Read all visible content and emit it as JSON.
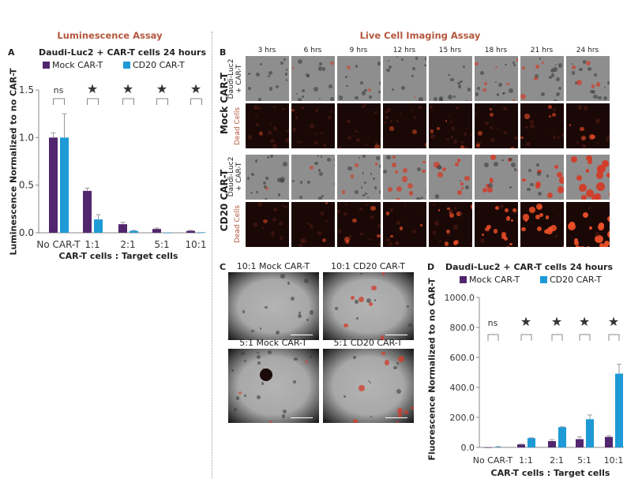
{
  "sections": {
    "left_title": "Luminescence Assay",
    "right_title": "Live Cell Imaging Assay"
  },
  "panels": {
    "a": "A",
    "b": "B",
    "c": "C",
    "d": "D"
  },
  "legend": {
    "mock": "Mock CAR-T",
    "cd20": "CD20 CAR-T"
  },
  "colors": {
    "mock": "#52266e",
    "cd20": "#1e9ad6",
    "accent": "#b5573d"
  },
  "panel_b": {
    "timepoints": [
      "3 hrs",
      "6 hrs",
      "9 hrs",
      "12 hrs",
      "15 hrs",
      "18 hrs",
      "21 hrs",
      "24 hrs"
    ],
    "groups": [
      {
        "label": "Mock CAR-T",
        "brightfield_label_1": "Daudi-Luc2",
        "brightfield_label_2": "+ CAR-T",
        "dead_label": "Dead Cells"
      },
      {
        "label": "CD20 CAR-T",
        "brightfield_label_1": "Daudi-Luc2",
        "brightfield_label_2": "+ CAR-T",
        "dead_label": "Dead Cells"
      }
    ]
  },
  "panel_c": {
    "images": [
      "10:1 Mock CAR-T",
      "10:1 CD20 CAR-T",
      "5:1 Mock CAR-T",
      "5:1 CD20 CAR-T"
    ]
  },
  "chart_data": [
    {
      "type": "bar",
      "title": "Daudi-Luc2 + CAR-T cells 24 hours",
      "xlabel": "CAR-T cells : Target cells",
      "ylabel": "Luminescence Normalized to no CAR-T",
      "categories": [
        "No CAR-T",
        "1:1",
        "2:1",
        "5:1",
        "10:1"
      ],
      "ylim": [
        0,
        1.5
      ],
      "yticks": [
        "0.0",
        "0.5",
        "1.0",
        "1.5"
      ],
      "ytick_values": [
        0,
        0.5,
        1.0,
        1.5
      ],
      "series": [
        {
          "name": "Mock CAR-T",
          "values": [
            1.0,
            0.44,
            0.09,
            0.04,
            0.02
          ],
          "errors": [
            0.05,
            0.03,
            0.02,
            0.01,
            0.005
          ]
        },
        {
          "name": "CD20 CAR-T",
          "values": [
            1.0,
            0.14,
            0.02,
            0.0,
            0.005
          ],
          "errors": [
            0.25,
            0.05,
            0.005,
            0.0,
            0.0
          ]
        }
      ],
      "significance": [
        "ns",
        "★",
        "★",
        "★",
        "★"
      ],
      "legend": "top",
      "grid": false
    },
    {
      "type": "bar",
      "title": "Daudi-Luc2 + CAR-T cells 24 hours",
      "xlabel": "CAR-T cells : Target cells",
      "ylabel": "Fluorescence Normalized to no CAR-T",
      "categories": [
        "No CAR-T",
        "1:1",
        "2:1",
        "5:1",
        "10:1"
      ],
      "ylim": [
        0,
        1000
      ],
      "yticks": [
        "0.0",
        "200.0",
        "400.0",
        "600.0",
        "800.0",
        "1000.0"
      ],
      "ytick_values": [
        0,
        200,
        400,
        600,
        800,
        1000
      ],
      "series": [
        {
          "name": "Mock CAR-T",
          "values": [
            0,
            20,
            42,
            55,
            70
          ],
          "errors": [
            0,
            2,
            10,
            15,
            8
          ]
        },
        {
          "name": "CD20 CAR-T",
          "values": [
            3,
            62,
            135,
            188,
            492
          ],
          "errors": [
            3,
            2,
            3,
            28,
            62
          ]
        }
      ],
      "significance": [
        "ns",
        "★",
        "★",
        "★",
        "★"
      ],
      "legend": "top",
      "grid": false
    }
  ]
}
